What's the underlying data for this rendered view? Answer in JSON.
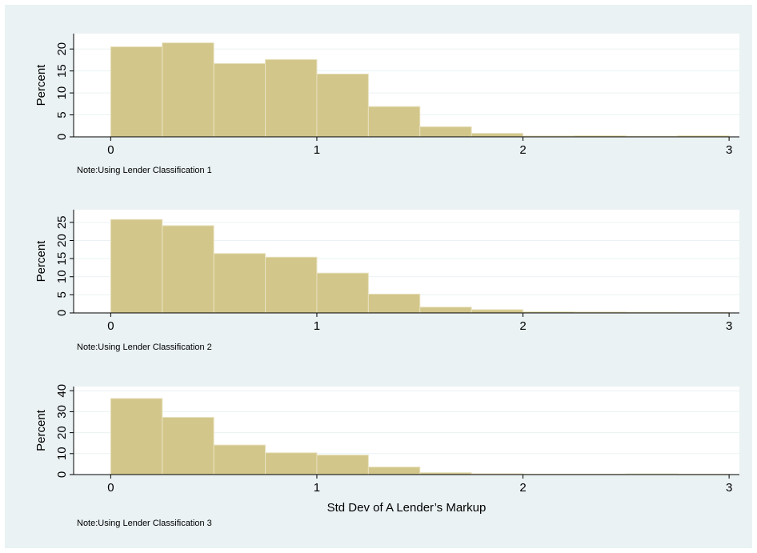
{
  "colors": {
    "background": "#eaf2f3",
    "plot_area": "#ffffff",
    "bar_fill": "#d2c68a",
    "bar_stroke": "#e9e2c0",
    "grid": "#eaf2f3",
    "axis": "#000000"
  },
  "chart_data": [
    {
      "type": "bar",
      "bin_width": 0.25,
      "bin_starts": [
        0,
        0.25,
        0.5,
        0.75,
        1.0,
        1.25,
        1.5,
        1.75,
        2.0,
        2.25,
        2.5,
        2.75
      ],
      "values": [
        20.5,
        21.4,
        16.7,
        17.6,
        14.3,
        6.9,
        2.3,
        0.8,
        0.2,
        0.25,
        0.15,
        0.25
      ],
      "xlim": [
        -0.18,
        3.05
      ],
      "ylim": [
        0,
        23.5
      ],
      "xticks": [
        0,
        1,
        2,
        3
      ],
      "xtick_labels": [
        "0",
        "1",
        "2",
        "3"
      ],
      "yticks": [
        0,
        5,
        10,
        15,
        20
      ],
      "ytick_labels": [
        "0",
        "5",
        "10",
        "15",
        "20"
      ],
      "ylabel": "Percent",
      "xlabel": "",
      "note": "Note:Using Lender Classification 1",
      "grid": true
    },
    {
      "type": "bar",
      "bin_width": 0.25,
      "bin_starts": [
        0,
        0.25,
        0.5,
        0.75,
        1.0,
        1.25,
        1.5,
        1.75,
        2.0,
        2.25,
        2.5,
        2.75
      ],
      "values": [
        25.8,
        24.1,
        16.4,
        15.4,
        11.0,
        5.2,
        1.6,
        0.9,
        0.3,
        0.25,
        0.2,
        0.15
      ],
      "xlim": [
        -0.18,
        3.05
      ],
      "ylim": [
        0,
        28.5
      ],
      "xticks": [
        0,
        1,
        2,
        3
      ],
      "xtick_labels": [
        "0",
        "1",
        "2",
        "3"
      ],
      "yticks": [
        0,
        5,
        10,
        15,
        20,
        25
      ],
      "ytick_labels": [
        "0",
        "5",
        "10",
        "15",
        "20",
        "25"
      ],
      "ylabel": "Percent",
      "xlabel": "",
      "note": "Note:Using Lender Classification 2",
      "grid": true
    },
    {
      "type": "bar",
      "bin_width": 0.25,
      "bin_starts": [
        0,
        0.25,
        0.5,
        0.75,
        1.0,
        1.25,
        1.5,
        1.75,
        2.0,
        2.25,
        2.5,
        2.75
      ],
      "values": [
        36.3,
        27.3,
        14.1,
        10.4,
        9.3,
        3.6,
        0.9,
        0.4,
        0.2,
        0.2,
        0.3,
        0.15
      ],
      "xlim": [
        -0.18,
        3.05
      ],
      "ylim": [
        0,
        42
      ],
      "xticks": [
        0,
        1,
        2,
        3
      ],
      "xtick_labels": [
        "0",
        "1",
        "2",
        "3"
      ],
      "yticks": [
        0,
        10,
        20,
        30,
        40
      ],
      "ytick_labels": [
        "0",
        "10",
        "20",
        "30",
        "40"
      ],
      "ylabel": "Percent",
      "xlabel": "Std Dev of A Lender’s Markup",
      "note": "Note:Using Lender Classification 3",
      "grid": true
    }
  ]
}
